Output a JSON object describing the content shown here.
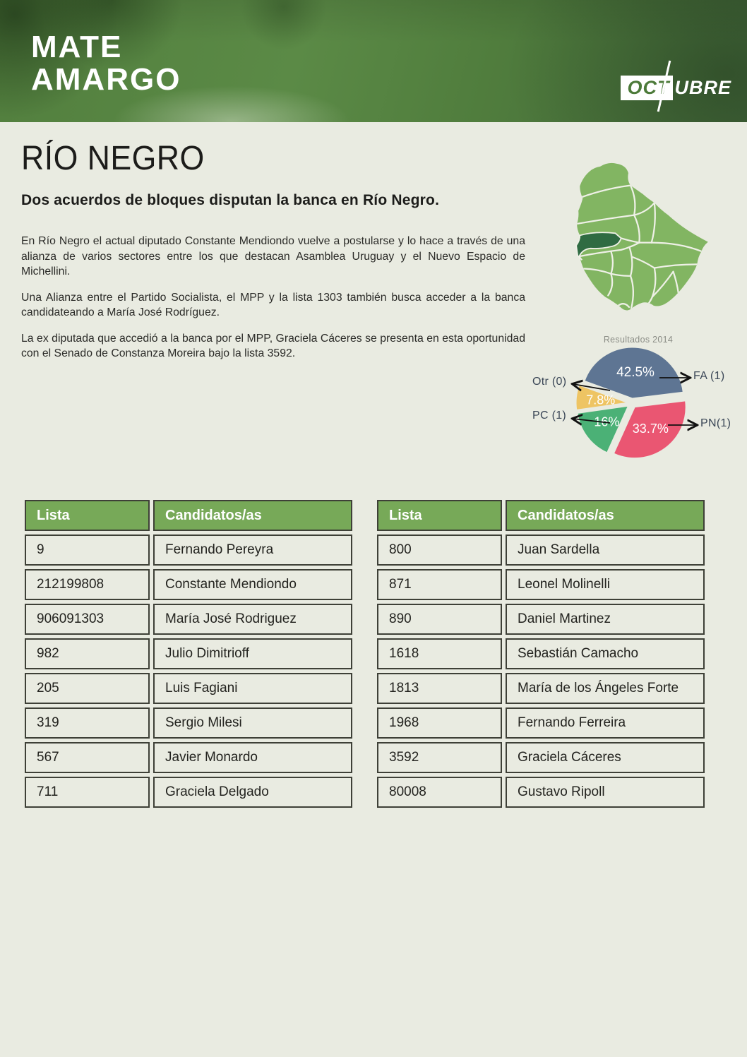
{
  "page": {
    "background": "#e9ebe1"
  },
  "header": {
    "brand_line1": "MATE",
    "brand_line2": "AMARGO",
    "octubre_boxed": "OCT",
    "octubre_rest": "UBRE",
    "banner_green": "#527f3e"
  },
  "article": {
    "title": "RÍO NEGRO",
    "subtitle": "Dos acuerdos de bloques disputan la banca en Río Negro.",
    "paragraphs": [
      "En Río Negro el actual diputado Constante Mendiondo vuelve a postularse y lo hace a través de una alianza de varios sectores entre los que destacan Asamblea Uruguay y el Nuevo Espacio de Michellini.",
      "Una Alianza entre el Partido Socialista, el MPP y la lista 1303 también busca acceder a la banca candidateando a María José Rodríguez.",
      "La ex diputada que accedió a la banca por el MPP, Graciela Cáceres se presenta en esta oportunidad con el Senado de Constanza Moreira bajo la lista 3592."
    ]
  },
  "map": {
    "country": "Uruguay",
    "highlighted_department": "Río Negro",
    "fill": "#82b562",
    "highlight_fill": "#2f6b42",
    "border": "#eef0e6"
  },
  "chart_data": {
    "type": "pie",
    "title": "Resultados 2014",
    "slices": [
      {
        "label": "FA (1)",
        "value": 42.5,
        "display": "42.5%",
        "color": "#5e7593"
      },
      {
        "label": "PN(1)",
        "value": 33.7,
        "display": "33.7%",
        "color": "#ea5672"
      },
      {
        "label": "PC (1)",
        "value": 16,
        "display": "16%",
        "color": "#4bb176"
      },
      {
        "label": "Otr (0)",
        "value": 7.8,
        "display": "7.8%",
        "color": "#eec463"
      }
    ],
    "start_angle_deg": 160,
    "direction": "clockwise",
    "exploded": true,
    "legend_position": "callout-arrows"
  },
  "tables": [
    {
      "headers": [
        "Lista",
        "Candidatos/as"
      ],
      "rows": [
        [
          "9",
          "Fernando Pereyra"
        ],
        [
          "212199808",
          "Constante Mendiondo"
        ],
        [
          "906091303",
          "María José Rodriguez"
        ],
        [
          "982",
          "Julio Dimitrioff"
        ],
        [
          "205",
          "Luis Fagiani"
        ],
        [
          "319",
          "Sergio Milesi"
        ],
        [
          "567",
          "Javier Monardo"
        ],
        [
          "711",
          "Graciela Delgado"
        ]
      ]
    },
    {
      "headers": [
        "Lista",
        "Candidatos/as"
      ],
      "rows": [
        [
          "800",
          "Juan Sardella"
        ],
        [
          "871",
          "Leonel Molinelli"
        ],
        [
          "890",
          "Daniel Martinez"
        ],
        [
          "1618",
          "Sebastián Camacho"
        ],
        [
          "1813",
          "María de los Ángeles Forte"
        ],
        [
          "1968",
          "Fernando Ferreira"
        ],
        [
          "3592",
          "Graciela Cáceres"
        ],
        [
          "80008",
          "Gustavo Ripoll"
        ]
      ]
    }
  ],
  "colors": {
    "page_bg": "#e9ebe1",
    "table_header_bg": "#77a958",
    "table_border": "#3e4037",
    "callout_text": "#3a4656"
  }
}
